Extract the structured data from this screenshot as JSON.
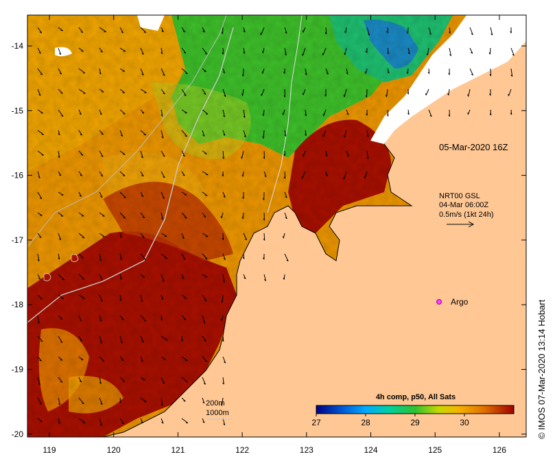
{
  "map": {
    "timestamp": "05-Mar-2020 16Z",
    "wind": {
      "line1": "NRT00 GSL",
      "line2": "04-Mar 06:00Z",
      "line3": "0.5m/s (1kt 24h)"
    },
    "argo_label": "Argo",
    "depth": {
      "shallow": "200m",
      "deep": "1000m"
    },
    "colorbar": {
      "title": "4h comp, p50, All Sats",
      "ticks": [
        "27",
        "28",
        "29",
        "30"
      ],
      "range": [
        27,
        31
      ]
    },
    "credit": "© IMOS 07-Mar-2020 13:14 Hobart",
    "lon_ticks": [
      "119",
      "120",
      "121",
      "122",
      "123",
      "124",
      "125",
      "126"
    ],
    "lat_ticks": [
      "-14",
      "-15",
      "-16",
      "-17",
      "-18",
      "-19",
      "-20"
    ],
    "colors": {
      "land": "#fec794",
      "warm": "#a30d00",
      "orange": "#e98c00",
      "yellow": "#f4b400",
      "green": "#2fc42a",
      "blue": "#1080d0"
    }
  }
}
